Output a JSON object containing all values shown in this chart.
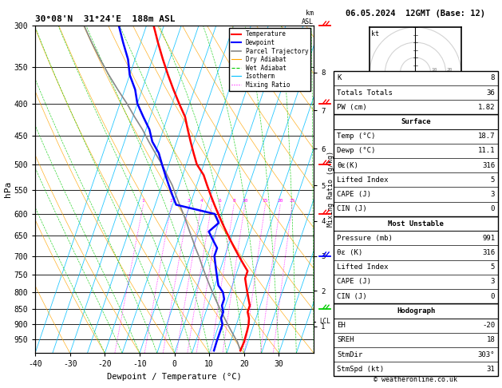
{
  "title_left": "30°08'N  31°24'E  188m ASL",
  "title_right": "06.05.2024  12GMT (Base: 12)",
  "xlabel": "Dewpoint / Temperature (°C)",
  "ylabel_left": "hPa",
  "temp_ticks": [
    -40,
    -30,
    -20,
    -10,
    0,
    10,
    20,
    30
  ],
  "isotherm_color": "#00bfff",
  "dry_adiabat_color": "#ffa500",
  "wet_adiabat_color": "#00cc00",
  "mixing_ratio_color": "#ff00ff",
  "mixing_ratio_values": [
    1,
    2,
    3,
    4,
    5,
    6,
    8,
    10,
    15,
    20,
    25
  ],
  "temperature_profile_p": [
    300,
    320,
    340,
    360,
    380,
    400,
    420,
    440,
    460,
    480,
    500,
    520,
    540,
    560,
    580,
    600,
    620,
    640,
    660,
    680,
    700,
    720,
    740,
    760,
    780,
    800,
    820,
    840,
    860,
    880,
    900,
    920,
    940,
    960,
    991
  ],
  "temperature_profile_t": [
    -38,
    -35,
    -32,
    -29,
    -26,
    -23,
    -20,
    -18,
    -16,
    -14,
    -12,
    -9,
    -7,
    -5,
    -3,
    -1,
    1,
    3,
    5,
    7,
    9,
    11,
    13,
    13,
    14,
    15,
    16,
    17,
    17,
    18,
    18.5,
    18.7,
    18.8,
    18.9,
    18.7
  ],
  "dewpoint_profile_p": [
    300,
    320,
    340,
    360,
    380,
    400,
    420,
    440,
    460,
    480,
    500,
    520,
    540,
    560,
    580,
    600,
    620,
    640,
    660,
    680,
    700,
    720,
    740,
    760,
    780,
    800,
    820,
    840,
    860,
    880,
    900,
    920,
    940,
    960,
    991
  ],
  "dewpoint_profile_t": [
    -48,
    -45,
    -42,
    -40,
    -37,
    -35,
    -32,
    -29,
    -27,
    -24,
    -22,
    -20,
    -18,
    -16,
    -14,
    -2,
    0,
    -2,
    0,
    2,
    2,
    3,
    4,
    5,
    6,
    8,
    9,
    9,
    10,
    10,
    11,
    11,
    11,
    11,
    11.1
  ],
  "parcel_profile_p": [
    991,
    960,
    940,
    920,
    900,
    880,
    860,
    840,
    820,
    800,
    780,
    760,
    740,
    720,
    700,
    680,
    660,
    640,
    620,
    600,
    580,
    560,
    540,
    520,
    500,
    480,
    460,
    440,
    420,
    400,
    380,
    360,
    340,
    320,
    300
  ],
  "parcel_profile_t": [
    18.7,
    17.0,
    15.5,
    14.0,
    12.5,
    11.0,
    9.5,
    8.0,
    6.5,
    5.0,
    3.5,
    2.0,
    0.5,
    -1.0,
    -2.5,
    -4.2,
    -5.8,
    -7.5,
    -9.2,
    -11.0,
    -13.0,
    -15.0,
    -17.0,
    -19.5,
    -22.0,
    -25.0,
    -28.0,
    -31.0,
    -34.5,
    -38.0,
    -42.0,
    -46.0,
    -50.0,
    -54.0,
    -58.0
  ],
  "lcl_pressure": 890,
  "temperature_color": "#ff0000",
  "dewpoint_color": "#0000ff",
  "parcel_color": "#888888",
  "pressure_yticks": [
    300,
    350,
    400,
    450,
    500,
    550,
    600,
    650,
    700,
    750,
    800,
    850,
    900,
    950
  ],
  "km_vals": [
    1,
    2,
    3,
    4,
    5,
    6,
    7,
    8
  ],
  "km_pres": [
    907,
    795,
    700,
    616,
    540,
    472,
    410,
    357
  ],
  "info_K": "8",
  "info_TT": "36",
  "info_PW": "1.82",
  "info_sfc_temp": "18.7",
  "info_sfc_dewp": "11.1",
  "info_sfc_theta": "316",
  "info_sfc_LI": "5",
  "info_sfc_CAPE": "3",
  "info_sfc_CIN": "0",
  "info_mu_pres": "991",
  "info_mu_theta": "316",
  "info_mu_LI": "5",
  "info_mu_CAPE": "3",
  "info_mu_CIN": "0",
  "info_EH": "-20",
  "info_SREH": "18",
  "info_StmDir": "303°",
  "info_StmSpd": "31",
  "wind_pressures": [
    300,
    400,
    500,
    600,
    700,
    850
  ],
  "wind_colors": [
    "#ff0000",
    "#ff0000",
    "#ff0000",
    "#ff0000",
    "#0000ff",
    "#00cc00"
  ]
}
